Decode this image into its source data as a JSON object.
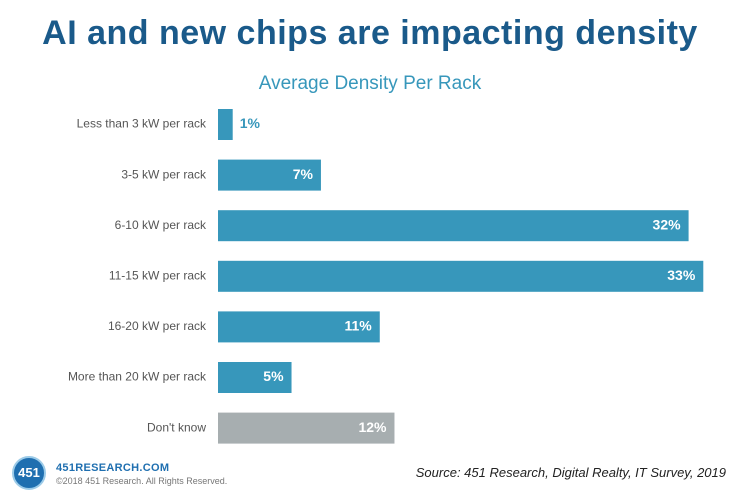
{
  "headline": "AI and new chips are impacting density",
  "chart_data": {
    "type": "bar",
    "orientation": "horizontal",
    "title": "Average Density Per Rack",
    "xlabel": "",
    "ylabel": "",
    "xlim": [
      0,
      34
    ],
    "categories": [
      "Less than 3 kW per rack",
      "3-5 kW per rack",
      "6-10 kW per rack",
      "11-15 kW per rack",
      "16-20 kW per rack",
      "More than 20 kW per rack",
      "Don't know"
    ],
    "values": [
      1,
      7,
      32,
      33,
      11,
      5,
      12
    ],
    "value_labels": [
      "1%",
      "7%",
      "32%",
      "33%",
      "11%",
      "5%",
      "12%"
    ],
    "bar_colors": [
      "#3797bb",
      "#3797bb",
      "#3797bb",
      "#3797bb",
      "#3797bb",
      "#3797bb",
      "#a7aeb0"
    ]
  },
  "footer": {
    "logo_text": "451",
    "brand": "451RESEARCH.COM",
    "copyright": "©2018 451 Research. All Rights Reserved.",
    "source": "Source: 451 Research, Digital Realty, IT Survey, 2019"
  },
  "colors": {
    "title": "#1a5a8a",
    "subtitle": "#3797bb",
    "label_outside": "#3797bb",
    "label_inside": "#ffffff"
  }
}
